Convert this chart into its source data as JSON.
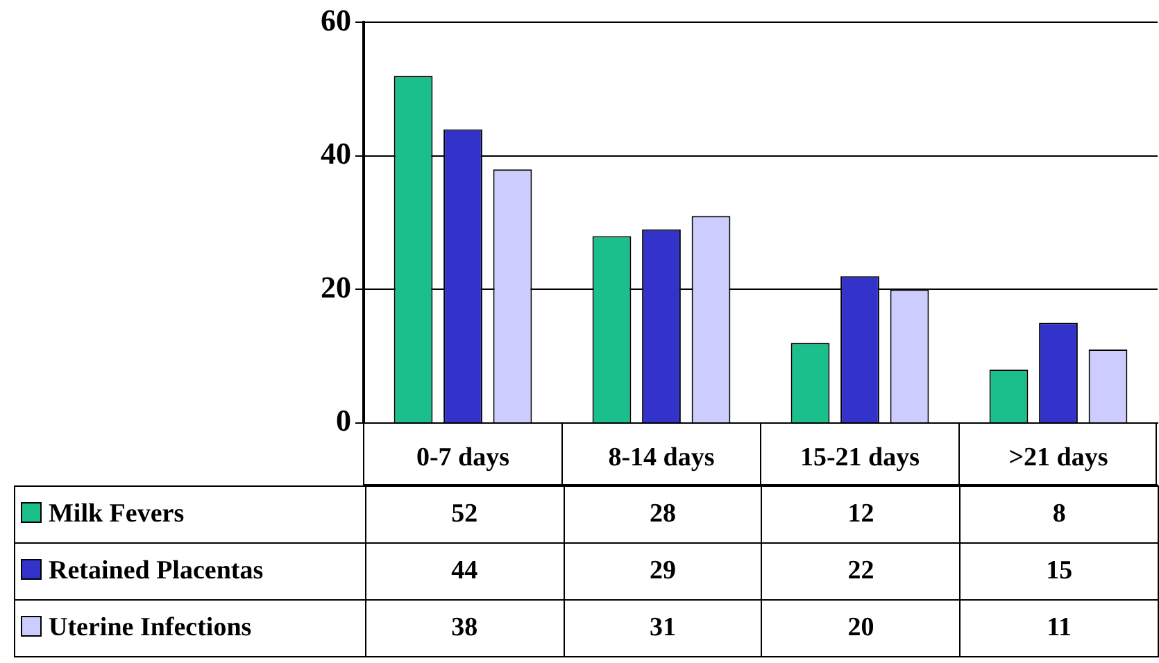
{
  "chart_data": {
    "type": "bar",
    "categories": [
      "0-7 days",
      "8-14 days",
      "15-21 days",
      ">21 days"
    ],
    "series": [
      {
        "name": "Milk Fevers",
        "color": "#1abf8c",
        "values": [
          52,
          28,
          12,
          8
        ]
      },
      {
        "name": "Retained Placentas",
        "color": "#3333cc",
        "values": [
          44,
          29,
          22,
          15
        ]
      },
      {
        "name": "Uterine Infections",
        "color": "#ccccff",
        "values": [
          38,
          31,
          20,
          11
        ]
      }
    ],
    "ylim": [
      0,
      60
    ],
    "yticks": [
      0,
      20,
      40,
      60
    ],
    "grid": "y",
    "legend": "bottom left",
    "data_labels": true
  }
}
